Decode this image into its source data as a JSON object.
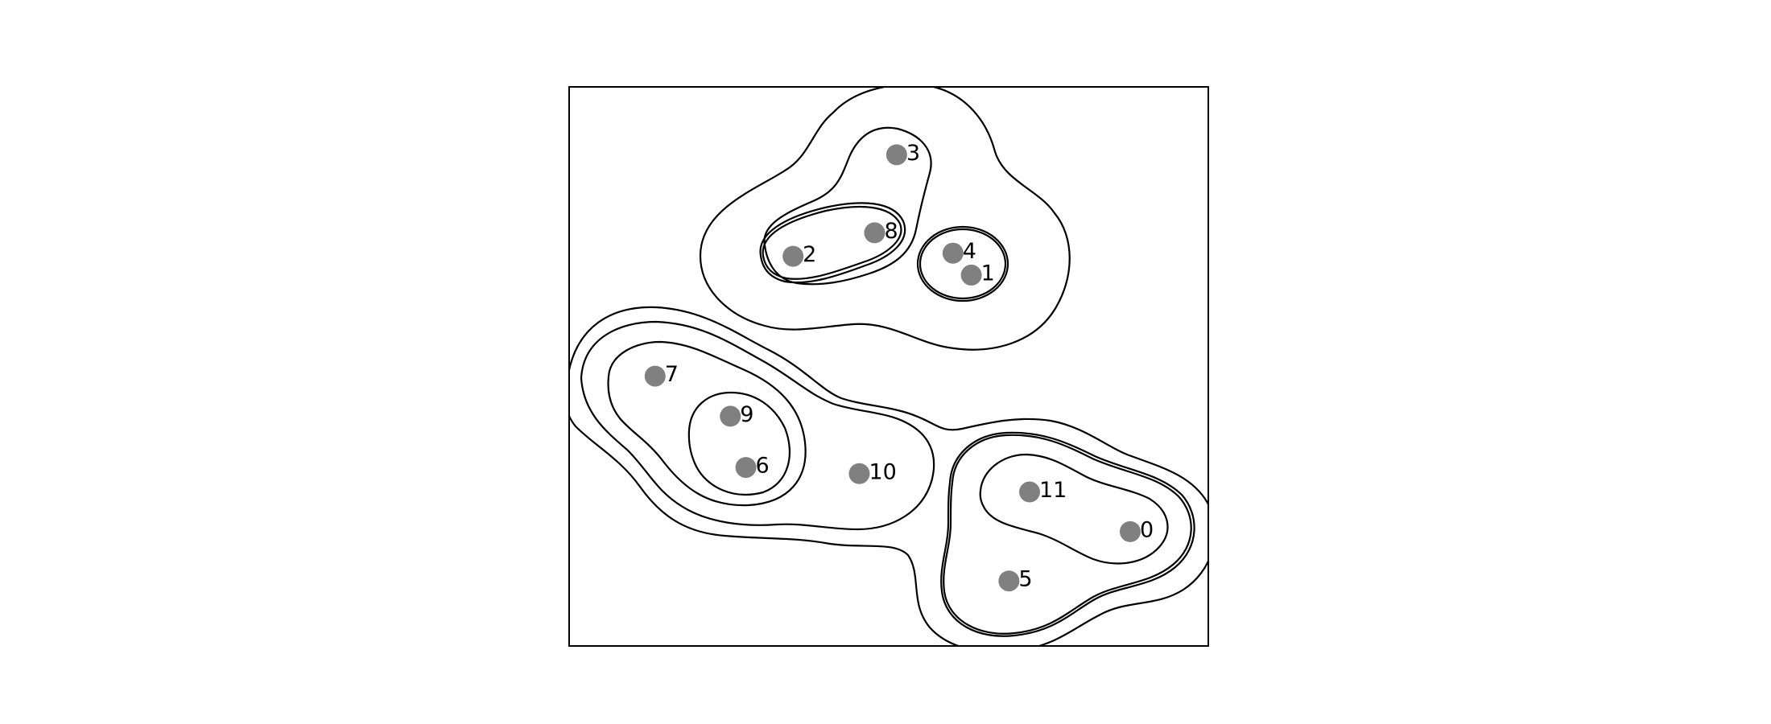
{
  "points": [
    {
      "id": "0",
      "x": 0.8778,
      "y": 0.7955
    },
    {
      "id": "1",
      "x": 0.6292,
      "y": 0.3366
    },
    {
      "id": "2",
      "x": 0.3503,
      "y": 0.303
    },
    {
      "id": "3",
      "x": 0.5124,
      "y": 0.1214
    },
    {
      "id": "4",
      "x": 0.6005,
      "y": 0.2974
    },
    {
      "id": "5",
      "x": 0.6881,
      "y": 0.8838
    },
    {
      "id": "6",
      "x": 0.2765,
      "y": 0.6807
    },
    {
      "id": "7",
      "x": 0.1345,
      "y": 0.5174
    },
    {
      "id": "8",
      "x": 0.4779,
      "y": 0.261
    },
    {
      "id": "9",
      "x": 0.2522,
      "y": 0.5891
    },
    {
      "id": "10",
      "x": 0.454,
      "y": 0.6918
    },
    {
      "id": "11",
      "x": 0.7204,
      "y": 0.7245
    }
  ]
}
